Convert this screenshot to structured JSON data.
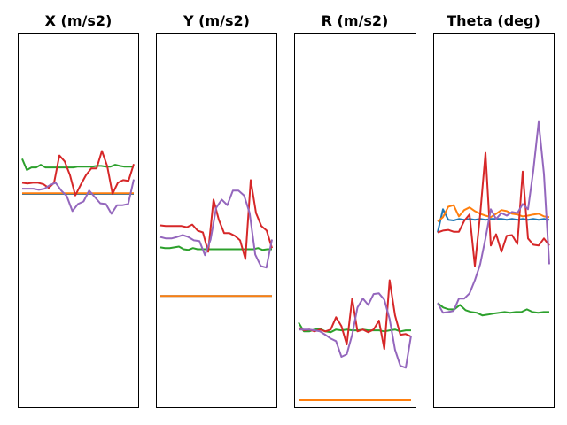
{
  "figure": {
    "colors": [
      "#1f77b4",
      "#ff7f0e",
      "#2ca02c",
      "#d62728",
      "#9467bd"
    ]
  },
  "chart_data": [
    {
      "type": "line",
      "title": "X (m/s2)",
      "xlabel": "",
      "ylabel": "",
      "axes_visible": false,
      "grid": false,
      "ylim": [
        0,
        100
      ],
      "series": [
        {
          "color": "#1f77b4",
          "values": [
            57.1,
            57.1,
            57.1,
            57.1,
            57.1,
            57.1,
            57.1,
            57.1,
            57.1,
            57.1,
            57.1,
            57.1,
            57.1,
            57.1,
            57.1,
            57.1,
            57.1,
            57.1,
            57.1,
            57.1,
            57.1,
            57.1,
            57.1,
            57.1,
            57.1
          ]
        },
        {
          "color": "#ff7f0e",
          "values": [
            57.3,
            57.3,
            57.3,
            57.3,
            57.3,
            57.3,
            57.3,
            57.3,
            57.3,
            57.3,
            57.3,
            57.3,
            57.3,
            57.3,
            57.3,
            57.3,
            57.3,
            57.3,
            57.3,
            57.3,
            57.3,
            57.3,
            57.3,
            57.3,
            57.3
          ]
        },
        {
          "color": "#2ca02c",
          "values": [
            66.5,
            63.5,
            64.2,
            64.2,
            64.9,
            64.2,
            64.2,
            64.2,
            64.2,
            64.2,
            64.2,
            64.2,
            64.4,
            64.4,
            64.4,
            64.4,
            64.6,
            64.6,
            64.4,
            64.4,
            64.9,
            64.6,
            64.4,
            64.4,
            64.4
          ]
        },
        {
          "color": "#d62728",
          "values": [
            60.1,
            59.9,
            60.1,
            60.1,
            59.7,
            58.7,
            60.1,
            67.4,
            65.8,
            62.1,
            56.7,
            59.5,
            62.1,
            63.9,
            63.9,
            68.6,
            64.6,
            57.1,
            60.1,
            60.8,
            60.6,
            65.1
          ]
        },
        {
          "color": "#9467bd",
          "values": [
            58.5,
            58.5,
            58.5,
            58.2,
            58.5,
            59.5,
            60.1,
            58.0,
            56.5,
            52.5,
            54.4,
            55.1,
            58.0,
            56.3,
            54.6,
            54.4,
            51.8,
            54.1,
            54.1,
            54.4,
            61.0
          ]
        }
      ]
    },
    {
      "type": "line",
      "title": "Y (m/s2)",
      "xlabel": "",
      "ylabel": "",
      "axes_visible": false,
      "grid": false,
      "ylim": [
        0,
        100
      ],
      "series": [
        {
          "color": "#1f77b4",
          "values": [
            29.8,
            29.8,
            29.8,
            29.8,
            29.8,
            29.8,
            29.8,
            29.8,
            29.8,
            29.8,
            29.8,
            29.8,
            29.8,
            29.8,
            29.8,
            29.8,
            29.8,
            29.8,
            29.8,
            29.8,
            29.8,
            29.8,
            29.8,
            29.8,
            29.8
          ]
        },
        {
          "color": "#ff7f0e",
          "values": [
            29.8,
            29.8,
            29.8,
            29.8,
            29.8,
            29.8,
            29.8,
            29.8,
            29.8,
            29.8,
            29.8,
            29.8,
            29.8,
            29.8,
            29.8,
            29.8,
            29.8,
            29.8,
            29.8,
            29.8,
            29.8,
            29.8,
            29.8,
            29.8,
            29.8
          ]
        },
        {
          "color": "#2ca02c",
          "values": [
            42.8,
            42.6,
            42.6,
            42.8,
            43.0,
            42.3,
            42.1,
            42.6,
            42.3,
            42.3,
            42.3,
            42.3,
            42.3,
            42.3,
            42.3,
            42.3,
            42.3,
            42.3,
            42.3,
            42.3,
            42.3,
            42.6,
            42.1,
            42.3,
            42.3
          ]
        },
        {
          "color": "#d62728",
          "values": [
            48.7,
            48.5,
            48.5,
            48.5,
            48.5,
            48.2,
            48.9,
            47.3,
            46.8,
            41.6,
            55.6,
            50.2,
            46.6,
            46.6,
            45.9,
            44.7,
            39.7,
            60.8,
            52.0,
            48.5,
            47.3,
            42.6
          ]
        },
        {
          "color": "#9467bd",
          "values": [
            45.6,
            45.2,
            45.2,
            45.6,
            46.1,
            45.6,
            44.7,
            44.5,
            40.7,
            44.9,
            53.4,
            55.6,
            54.1,
            58.0,
            58.0,
            56.7,
            52.0,
            40.9,
            37.8,
            37.4,
            44.9
          ]
        }
      ]
    },
    {
      "type": "line",
      "title": "R (m/s2)",
      "xlabel": "",
      "ylabel": "",
      "axes_visible": false,
      "grid": false,
      "ylim": [
        0,
        100
      ],
      "series": [
        {
          "color": "#1f77b4",
          "values": [
            1.9,
            1.9,
            1.9,
            1.9,
            1.9,
            1.9,
            1.9,
            1.9,
            1.9,
            1.9,
            1.9,
            1.9,
            1.9,
            1.9,
            1.9,
            1.9,
            1.9,
            1.9,
            1.9,
            1.9,
            1.9,
            1.9,
            1.9,
            1.9,
            1.9
          ]
        },
        {
          "color": "#ff7f0e",
          "values": [
            1.9,
            1.9,
            1.9,
            1.9,
            1.9,
            1.9,
            1.9,
            1.9,
            1.9,
            1.9,
            1.9,
            1.9,
            1.9,
            1.9,
            1.9,
            1.9,
            1.9,
            1.9,
            1.9,
            1.9,
            1.9,
            1.9,
            1.9,
            1.9,
            1.9
          ]
        },
        {
          "color": "#2ca02c",
          "values": [
            22.7,
            20.3,
            20.3,
            20.8,
            21.0,
            20.3,
            20.1,
            20.8,
            20.6,
            20.8,
            20.6,
            20.6,
            20.8,
            20.6,
            20.6,
            20.6,
            20.3,
            20.6,
            20.8,
            20.3,
            20.6,
            20.6
          ]
        },
        {
          "color": "#d62728",
          "values": [
            21.3,
            20.6,
            20.8,
            20.3,
            20.8,
            20.3,
            20.8,
            24.1,
            21.7,
            16.8,
            29.1,
            20.3,
            20.8,
            20.1,
            20.8,
            23.2,
            15.6,
            34.0,
            24.6,
            19.4,
            19.6,
            18.9
          ]
        },
        {
          "color": "#9467bd",
          "values": [
            20.8,
            20.8,
            20.8,
            20.6,
            20.3,
            19.4,
            18.4,
            17.7,
            13.5,
            14.2,
            19.4,
            26.7,
            29.1,
            27.4,
            30.3,
            30.5,
            28.8,
            23.6,
            15.4,
            11.1,
            10.6,
            19.2
          ]
        }
      ]
    },
    {
      "type": "line",
      "title": "Theta (deg)",
      "xlabel": "",
      "ylabel": "",
      "axes_visible": false,
      "grid": false,
      "ylim": [
        0,
        100
      ],
      "series": [
        {
          "color": "#1f77b4",
          "values": [
            46.8,
            53.0,
            50.2,
            50.0,
            50.4,
            50.2,
            50.4,
            50.2,
            50.4,
            50.2,
            50.4,
            50.4,
            50.4,
            50.2,
            50.4,
            50.2,
            50.4,
            50.2,
            50.4,
            50.2,
            50.4,
            50.2
          ]
        },
        {
          "color": "#ff7f0e",
          "values": [
            49.7,
            50.9,
            53.7,
            54.1,
            51.1,
            52.8,
            53.5,
            52.5,
            51.8,
            51.3,
            50.9,
            51.8,
            52.8,
            52.5,
            51.8,
            51.6,
            51.1,
            51.3,
            51.6,
            51.8,
            51.1,
            50.9
          ]
        },
        {
          "color": "#2ca02c",
          "values": [
            27.9,
            26.7,
            26.2,
            26.2,
            27.4,
            26.0,
            25.5,
            25.3,
            24.6,
            24.8,
            25.1,
            25.3,
            25.5,
            25.3,
            25.5,
            25.5,
            26.2,
            25.5,
            25.3,
            25.5,
            25.5
          ]
        },
        {
          "color": "#d62728",
          "values": [
            46.8,
            47.3,
            47.5,
            47.0,
            47.0,
            49.9,
            51.6,
            37.8,
            51.6,
            68.1,
            43.3,
            46.3,
            41.6,
            45.9,
            46.1,
            43.7,
            63.1,
            45.2,
            43.5,
            43.3,
            45.2,
            43.3
          ]
        },
        {
          "color": "#9467bd",
          "values": [
            27.9,
            25.3,
            25.5,
            25.8,
            29.1,
            29.1,
            30.5,
            34.0,
            38.3,
            45.2,
            53.0,
            50.4,
            52.0,
            51.3,
            52.3,
            52.0,
            54.4,
            53.0,
            63.4,
            76.4,
            62.4,
            38.3
          ]
        }
      ]
    }
  ]
}
